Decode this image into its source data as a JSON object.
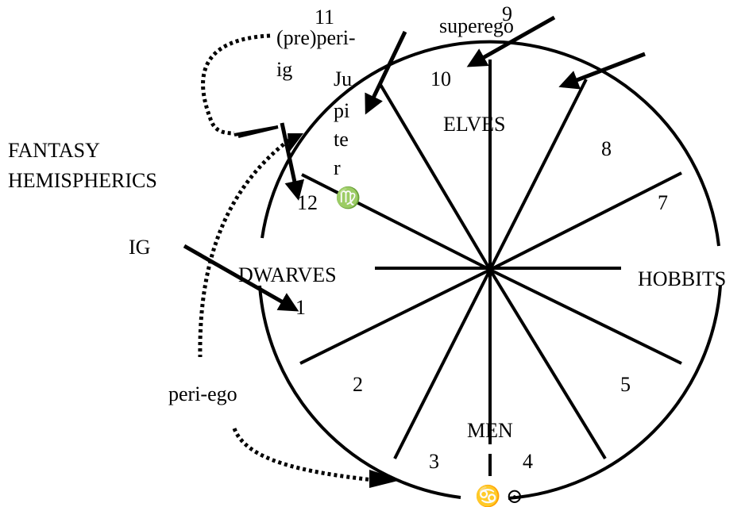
{
  "title": [
    "FANTASY",
    "HEMISPHERICS"
  ],
  "regions": {
    "top": "ELVES",
    "left": "DWARVES",
    "right": "HOBBITS",
    "bottom": "MEN"
  },
  "houses": [
    "1",
    "2",
    "3",
    "4",
    "5",
    "7",
    "8",
    "9",
    "10",
    "11",
    "12"
  ],
  "labels": {
    "ig": "IG",
    "superego": "superego",
    "pre_peri_ig": [
      "(pre)peri-",
      "ig"
    ],
    "jupiter": [
      "Ju",
      "pi",
      "te",
      "r"
    ],
    "virgo": "♍",
    "peri_ego": "peri-ego",
    "bottom_symbols": "♋ ⊙"
  }
}
